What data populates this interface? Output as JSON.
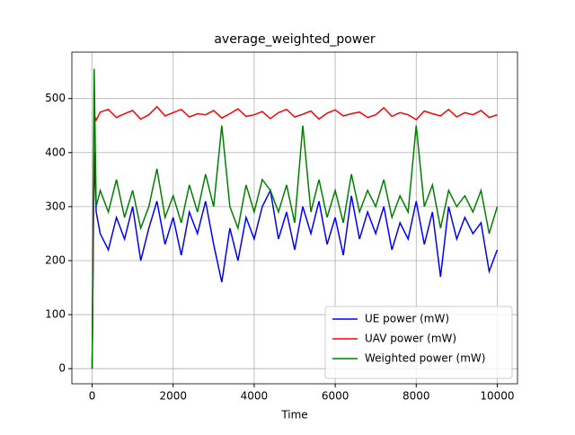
{
  "chart_data": {
    "type": "line",
    "title": "average_weighted_power",
    "xlabel": "Time",
    "x": [
      0,
      50,
      100,
      200,
      400,
      600,
      800,
      1000,
      1200,
      1400,
      1600,
      1800,
      2000,
      2200,
      2400,
      2600,
      2800,
      3000,
      3200,
      3400,
      3600,
      3800,
      4000,
      4200,
      4400,
      4600,
      4800,
      5000,
      5200,
      5400,
      5600,
      5800,
      6000,
      6200,
      6400,
      6600,
      6800,
      7000,
      7200,
      7400,
      7600,
      7800,
      8000,
      8200,
      8400,
      8600,
      8800,
      9000,
      9200,
      9400,
      9600,
      9800,
      10000
    ],
    "series": [
      {
        "name": "UE power (mW)",
        "color": "#0000ff",
        "values": [
          0,
          400,
          290,
          250,
          220,
          280,
          240,
          300,
          200,
          260,
          310,
          230,
          280,
          210,
          290,
          250,
          310,
          230,
          160,
          260,
          200,
          280,
          240,
          300,
          330,
          240,
          290,
          220,
          300,
          250,
          310,
          230,
          280,
          210,
          320,
          240,
          290,
          250,
          300,
          220,
          270,
          240,
          310,
          230,
          290,
          170,
          300,
          240,
          280,
          250,
          270,
          180,
          220
        ]
      },
      {
        "name": "UAV power (mW)",
        "color": "#ff0000",
        "values": [
          0,
          470,
          460,
          475,
          480,
          465,
          472,
          478,
          462,
          470,
          485,
          468,
          474,
          480,
          466,
          472,
          470,
          478,
          464,
          472,
          481,
          467,
          470,
          476,
          463,
          474,
          480,
          466,
          471,
          477,
          462,
          473,
          479,
          468,
          472,
          475,
          465,
          470,
          483,
          467,
          474,
          470,
          461,
          477,
          472,
          468,
          480,
          466,
          474,
          470,
          478,
          465,
          470
        ]
      },
      {
        "name": "Weighted power (mW)",
        "color": "#008000",
        "values": [
          0,
          555,
          300,
          330,
          290,
          350,
          280,
          330,
          260,
          300,
          370,
          280,
          320,
          270,
          340,
          290,
          360,
          300,
          450,
          300,
          260,
          340,
          290,
          350,
          330,
          290,
          340,
          270,
          450,
          290,
          350,
          280,
          330,
          270,
          360,
          290,
          330,
          300,
          350,
          280,
          320,
          290,
          450,
          300,
          340,
          260,
          330,
          300,
          320,
          290,
          330,
          250,
          300
        ]
      }
    ],
    "xlim": [
      -500,
      10500
    ],
    "ylim": [
      -28,
      586
    ],
    "xticks": [
      0,
      2000,
      4000,
      6000,
      8000,
      10000
    ],
    "yticks": [
      0,
      100,
      200,
      300,
      400,
      500
    ],
    "grid": true,
    "legend": "lower right"
  }
}
